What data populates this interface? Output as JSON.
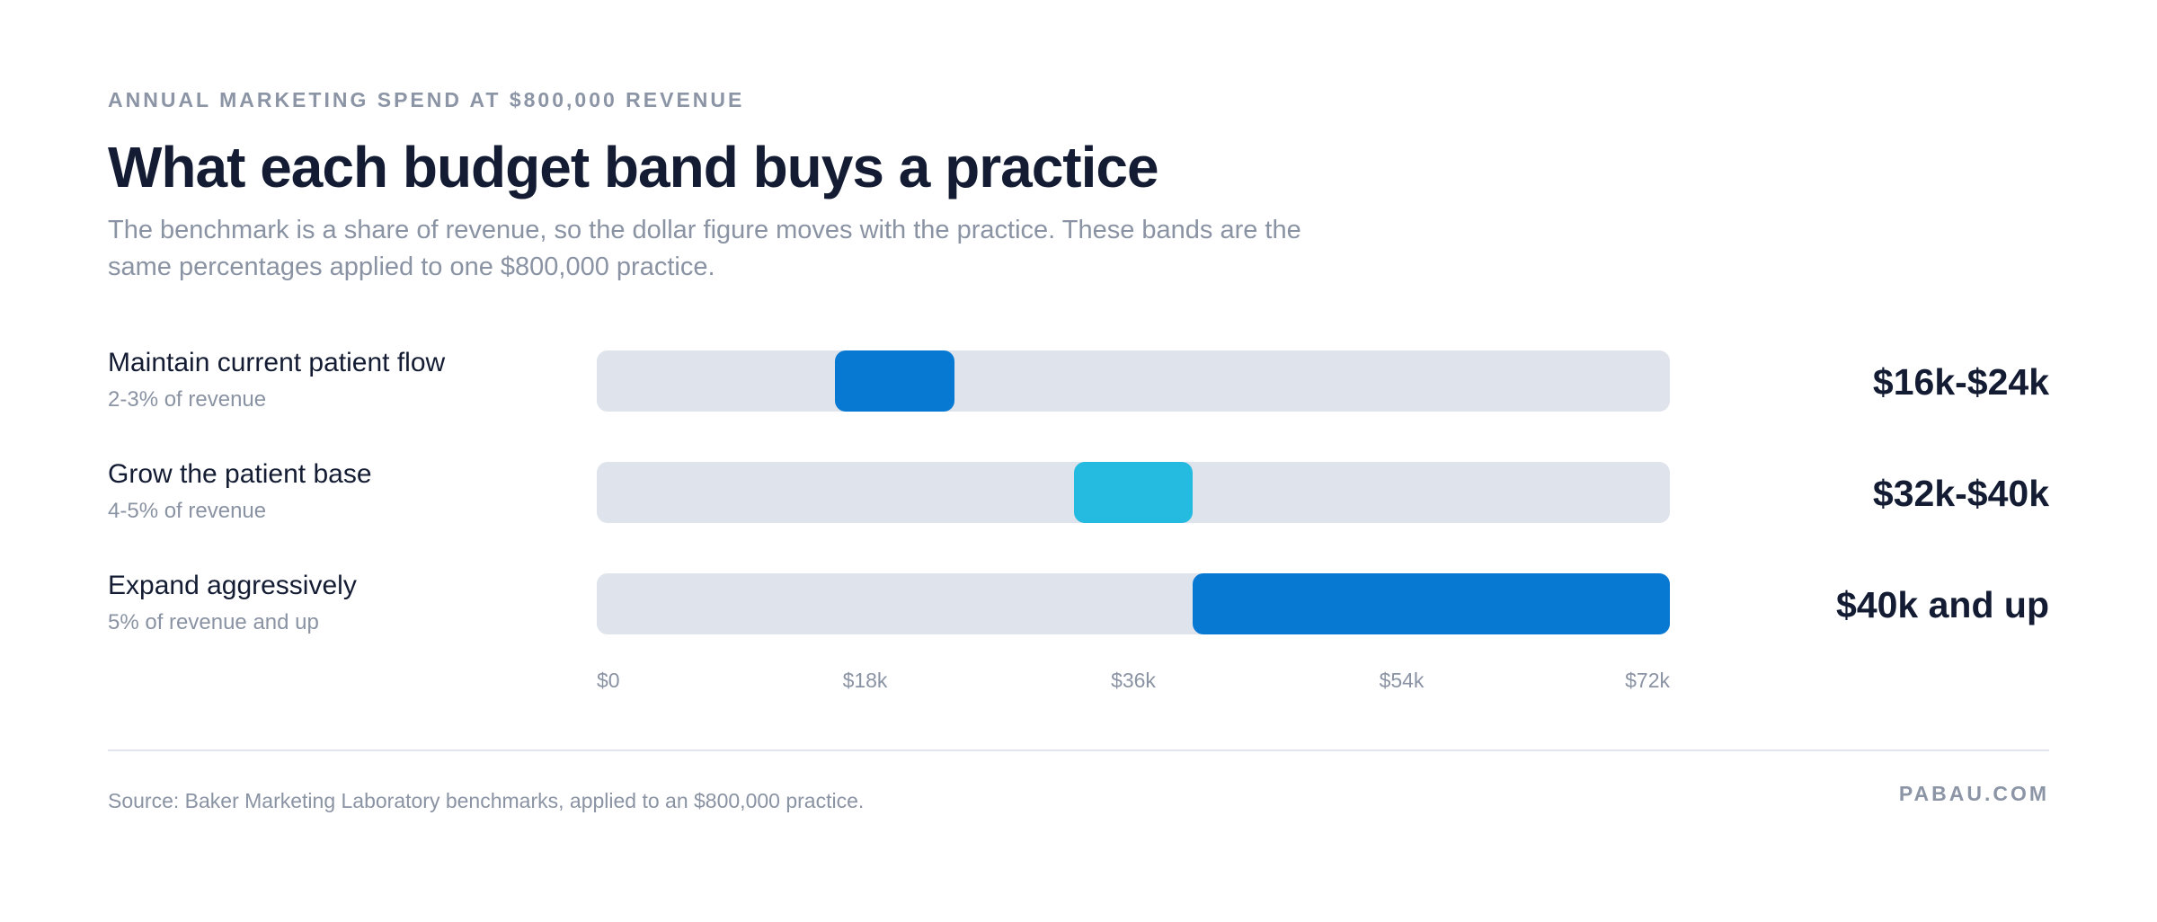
{
  "header": {
    "eyebrow": "ANNUAL MARKETING SPEND AT $800,000 REVENUE",
    "title": "What each budget band buys a practice",
    "subtitle": "The benchmark is a share of revenue, so the dollar figure moves with the practice. These bands are the same percentages applied to one $800,000 practice."
  },
  "chart_data": {
    "type": "bar",
    "orientation": "horizontal range",
    "xlim": [
      0,
      72000
    ],
    "x_ticks": [
      "$0",
      "$18k",
      "$36k",
      "$54k",
      "$72k"
    ],
    "x_tick_values": [
      0,
      18000,
      36000,
      54000,
      72000
    ],
    "grid": false,
    "rows": [
      {
        "label": "Maintain current patient flow",
        "sublabel": "2-3% of revenue",
        "start": 16000,
        "end": 24000,
        "range_label": "$16k-$24k",
        "color": "#0779d3"
      },
      {
        "label": "Grow the patient base",
        "sublabel": "4-5% of revenue",
        "start": 32000,
        "end": 40000,
        "range_label": "$32k-$40k",
        "color": "#25bbe1"
      },
      {
        "label": "Expand aggressively",
        "sublabel": "5% of revenue and up",
        "start": 40000,
        "end": 72000,
        "range_label": "$40k and up",
        "color": "#0779d3"
      }
    ],
    "track_color": "#dfe3eb"
  },
  "footer": {
    "source": "Source: Baker Marketing Laboratory benchmarks, applied to an $800,000 practice.",
    "brand": "PABAU.COM"
  }
}
